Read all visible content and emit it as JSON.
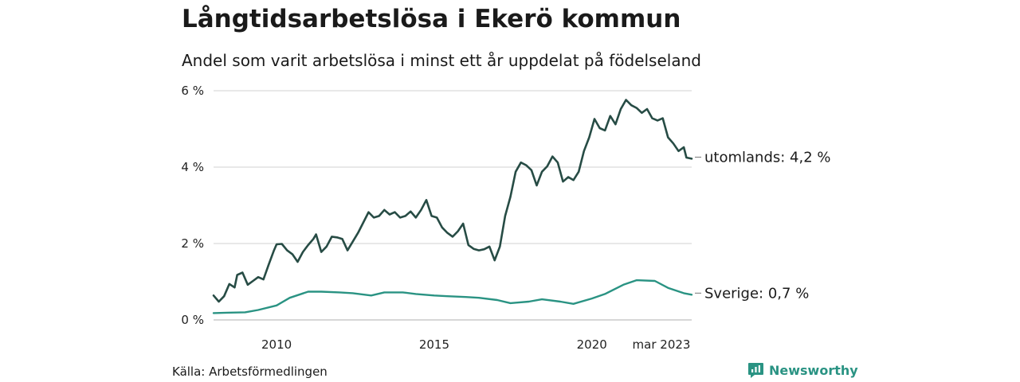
{
  "header": {
    "title": "Långtidsarbetslösa i Ekerö kommun",
    "subtitle": "Andel som varit arbetslösa i minst ett år uppdelat på födelseland"
  },
  "footer": {
    "source": "Källa: Arbetsförmedlingen",
    "brand": "Newsworthy"
  },
  "colors": {
    "series_abroad": "#274c45",
    "series_sweden": "#2a9383",
    "grid": "#d9d9d9",
    "brand": "#2a9383"
  },
  "icons": {
    "brand": "newsworthy-logo-icon"
  },
  "chart_data": {
    "type": "line",
    "title": "Långtidsarbetslösa i Ekerö kommun",
    "subtitle": "Andel som varit arbetslösa i minst ett år uppdelat på födelseland",
    "xlabel": "",
    "ylabel": "",
    "y_unit": "%",
    "ylim": [
      0,
      6
    ],
    "xlim": [
      "2008-01",
      "2023-03"
    ],
    "y_ticks": [
      {
        "value": 0,
        "label": "0 %"
      },
      {
        "value": 2,
        "label": "2 %"
      },
      {
        "value": 4,
        "label": "4 %"
      },
      {
        "value": 6,
        "label": "6 %"
      }
    ],
    "x_ticks": [
      {
        "date": "2010-01",
        "label": "2010"
      },
      {
        "date": "2015-01",
        "label": "2015"
      },
      {
        "date": "2020-01",
        "label": "2020"
      },
      {
        "date": "2023-03",
        "label": "mar 2023"
      }
    ],
    "grid": true,
    "legend": "none",
    "series": [
      {
        "name": "utomlands",
        "end_label": "utomlands: 4,2 %",
        "points": [
          [
            "2008-01",
            0.64
          ],
          [
            "2008-03",
            0.48
          ],
          [
            "2008-05",
            0.62
          ],
          [
            "2008-07",
            0.94
          ],
          [
            "2008-09",
            0.85
          ],
          [
            "2008-10",
            1.18
          ],
          [
            "2008-12",
            1.24
          ],
          [
            "2009-02",
            0.92
          ],
          [
            "2009-04",
            1.02
          ],
          [
            "2009-06",
            1.12
          ],
          [
            "2009-08",
            1.06
          ],
          [
            "2009-10",
            1.45
          ],
          [
            "2009-12",
            1.82
          ],
          [
            "2010-01",
            1.98
          ],
          [
            "2010-03",
            1.99
          ],
          [
            "2010-05",
            1.82
          ],
          [
            "2010-07",
            1.72
          ],
          [
            "2010-09",
            1.52
          ],
          [
            "2010-11",
            1.78
          ],
          [
            "2011-01",
            1.96
          ],
          [
            "2011-03",
            2.12
          ],
          [
            "2011-04",
            2.24
          ],
          [
            "2011-06",
            1.78
          ],
          [
            "2011-08",
            1.92
          ],
          [
            "2011-10",
            2.18
          ],
          [
            "2011-12",
            2.16
          ],
          [
            "2012-02",
            2.12
          ],
          [
            "2012-04",
            1.82
          ],
          [
            "2012-06",
            2.05
          ],
          [
            "2012-08",
            2.28
          ],
          [
            "2012-10",
            2.55
          ],
          [
            "2012-12",
            2.82
          ],
          [
            "2013-02",
            2.68
          ],
          [
            "2013-04",
            2.72
          ],
          [
            "2013-06",
            2.88
          ],
          [
            "2013-08",
            2.76
          ],
          [
            "2013-10",
            2.82
          ],
          [
            "2013-12",
            2.68
          ],
          [
            "2014-02",
            2.72
          ],
          [
            "2014-04",
            2.84
          ],
          [
            "2014-06",
            2.68
          ],
          [
            "2014-08",
            2.88
          ],
          [
            "2014-10",
            3.14
          ],
          [
            "2014-12",
            2.72
          ],
          [
            "2015-02",
            2.68
          ],
          [
            "2015-04",
            2.42
          ],
          [
            "2015-06",
            2.28
          ],
          [
            "2015-08",
            2.18
          ],
          [
            "2015-10",
            2.32
          ],
          [
            "2015-12",
            2.52
          ],
          [
            "2016-02",
            1.96
          ],
          [
            "2016-04",
            1.86
          ],
          [
            "2016-06",
            1.82
          ],
          [
            "2016-08",
            1.85
          ],
          [
            "2016-10",
            1.92
          ],
          [
            "2016-12",
            1.56
          ],
          [
            "2017-02",
            1.92
          ],
          [
            "2017-04",
            2.72
          ],
          [
            "2017-06",
            3.22
          ],
          [
            "2017-08",
            3.88
          ],
          [
            "2017-10",
            4.12
          ],
          [
            "2017-12",
            4.05
          ],
          [
            "2018-02",
            3.92
          ],
          [
            "2018-04",
            3.52
          ],
          [
            "2018-06",
            3.88
          ],
          [
            "2018-08",
            4.02
          ],
          [
            "2018-10",
            4.28
          ],
          [
            "2018-12",
            4.12
          ],
          [
            "2019-02",
            3.62
          ],
          [
            "2019-04",
            3.74
          ],
          [
            "2019-06",
            3.66
          ],
          [
            "2019-08",
            3.88
          ],
          [
            "2019-10",
            4.42
          ],
          [
            "2019-12",
            4.78
          ],
          [
            "2020-02",
            5.26
          ],
          [
            "2020-04",
            5.02
          ],
          [
            "2020-06",
            4.96
          ],
          [
            "2020-08",
            5.34
          ],
          [
            "2020-10",
            5.12
          ],
          [
            "2020-12",
            5.52
          ],
          [
            "2021-02",
            5.76
          ],
          [
            "2021-04",
            5.62
          ],
          [
            "2021-06",
            5.55
          ],
          [
            "2021-08",
            5.42
          ],
          [
            "2021-10",
            5.52
          ],
          [
            "2021-12",
            5.28
          ],
          [
            "2022-02",
            5.22
          ],
          [
            "2022-04",
            5.28
          ],
          [
            "2022-06",
            4.78
          ],
          [
            "2022-08",
            4.62
          ],
          [
            "2022-10",
            4.42
          ],
          [
            "2022-12",
            4.52
          ],
          [
            "2023-01",
            4.25
          ],
          [
            "2023-03",
            4.22
          ]
        ]
      },
      {
        "name": "Sverige",
        "end_label": "Sverige: 0,7 %",
        "points": [
          [
            "2008-01",
            0.18
          ],
          [
            "2008-06",
            0.19
          ],
          [
            "2009-01",
            0.2
          ],
          [
            "2009-06",
            0.26
          ],
          [
            "2010-01",
            0.38
          ],
          [
            "2010-06",
            0.58
          ],
          [
            "2011-01",
            0.74
          ],
          [
            "2011-06",
            0.74
          ],
          [
            "2012-01",
            0.72
          ],
          [
            "2012-06",
            0.7
          ],
          [
            "2013-01",
            0.64
          ],
          [
            "2013-06",
            0.72
          ],
          [
            "2014-01",
            0.72
          ],
          [
            "2014-06",
            0.68
          ],
          [
            "2015-01",
            0.64
          ],
          [
            "2015-06",
            0.62
          ],
          [
            "2016-01",
            0.6
          ],
          [
            "2016-06",
            0.58
          ],
          [
            "2017-01",
            0.52
          ],
          [
            "2017-06",
            0.44
          ],
          [
            "2018-01",
            0.48
          ],
          [
            "2018-06",
            0.54
          ],
          [
            "2019-01",
            0.48
          ],
          [
            "2019-06",
            0.42
          ],
          [
            "2020-01",
            0.56
          ],
          [
            "2020-06",
            0.68
          ],
          [
            "2021-01",
            0.92
          ],
          [
            "2021-06",
            1.04
          ],
          [
            "2022-01",
            1.02
          ],
          [
            "2022-06",
            0.84
          ],
          [
            "2022-12",
            0.7
          ],
          [
            "2023-03",
            0.66
          ]
        ]
      }
    ]
  }
}
